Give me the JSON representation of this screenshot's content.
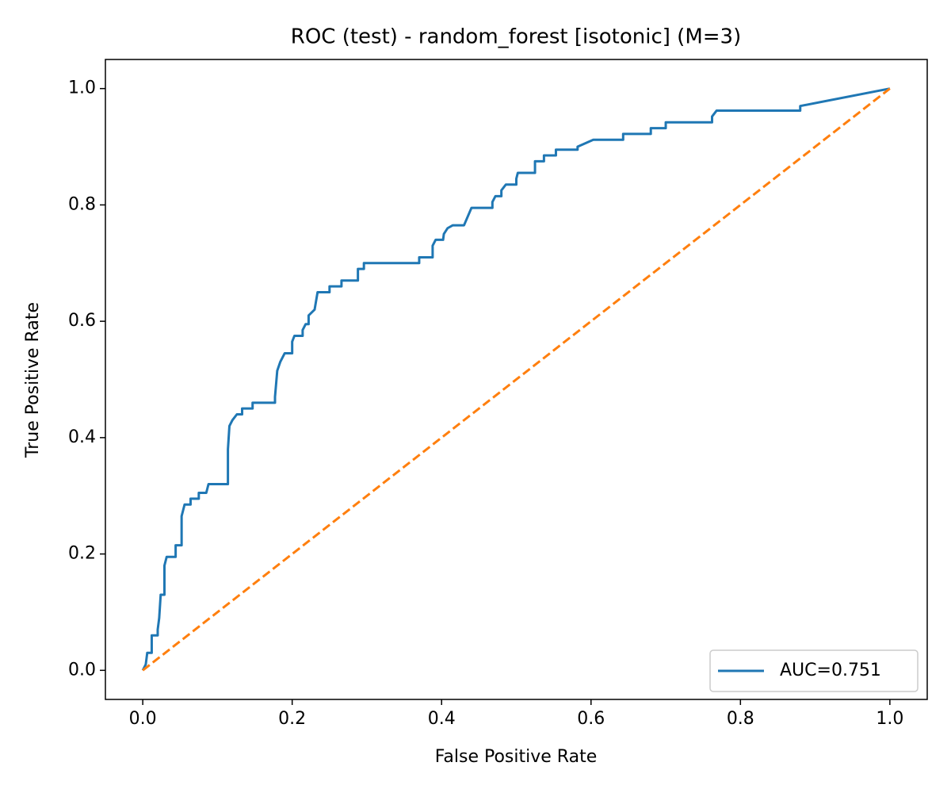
{
  "chart_data": {
    "type": "line",
    "title": "ROC (test) - random_forest [isotonic] (M=3)",
    "x_label": "False Positive Rate",
    "y_label": "True Positive Rate",
    "xlim": [
      -0.05,
      1.05
    ],
    "ylim": [
      -0.05,
      1.05
    ],
    "xticks": [
      {
        "value": 0,
        "label": "0.0"
      },
      0.2,
      0.4,
      0.6,
      0.8,
      {
        "value": 1,
        "label": "1.0"
      }
    ],
    "yticks": [
      {
        "value": 0,
        "label": "0.0"
      },
      0.2,
      0.4,
      0.6,
      0.8,
      {
        "value": 1,
        "label": "1.0"
      }
    ],
    "grid": false,
    "legend": "lower right",
    "series": [
      {
        "name": "AUC=0.751",
        "color": "#1f77b4",
        "linestyle": "solid",
        "x": [
          0,
          0.004,
          0.006,
          0.012,
          0.012,
          0.02,
          0.02,
          0.022,
          0.024,
          0.029,
          0.029,
          0.032,
          0.044,
          0.044,
          0.052,
          0.052,
          0.056,
          0.064,
          0.064,
          0.075,
          0.075,
          0.085,
          0.088,
          0.114,
          0.114,
          0.116,
          0.12,
          0.126,
          0.133,
          0.133,
          0.147,
          0.147,
          0.177,
          0.177,
          0.18,
          0.184,
          0.19,
          0.2,
          0.2,
          0.203,
          0.214,
          0.214,
          0.218,
          0.222,
          0.222,
          0.23,
          0.234,
          0.25,
          0.25,
          0.266,
          0.266,
          0.288,
          0.288,
          0.296,
          0.296,
          0.37,
          0.37,
          0.388,
          0.388,
          0.392,
          0.402,
          0.403,
          0.408,
          0.415,
          0.43,
          0.44,
          0.468,
          0.468,
          0.472,
          0.48,
          0.48,
          0.486,
          0.5,
          0.5,
          0.502,
          0.525,
          0.525,
          0.537,
          0.537,
          0.553,
          0.553,
          0.582,
          0.582,
          0.603,
          0.643,
          0.643,
          0.68,
          0.68,
          0.7,
          0.7,
          0.762,
          0.762,
          0.768,
          0.88,
          0.88,
          1
        ],
        "values": [
          0,
          0.01,
          0.03,
          0.03,
          0.06,
          0.06,
          0.07,
          0.09,
          0.13,
          0.13,
          0.18,
          0.195,
          0.195,
          0.215,
          0.215,
          0.265,
          0.285,
          0.285,
          0.295,
          0.295,
          0.305,
          0.305,
          0.32,
          0.32,
          0.38,
          0.42,
          0.43,
          0.44,
          0.44,
          0.45,
          0.45,
          0.46,
          0.46,
          0.47,
          0.515,
          0.53,
          0.545,
          0.545,
          0.565,
          0.575,
          0.575,
          0.585,
          0.595,
          0.595,
          0.61,
          0.62,
          0.65,
          0.65,
          0.66,
          0.66,
          0.67,
          0.67,
          0.69,
          0.69,
          0.7,
          0.7,
          0.71,
          0.71,
          0.73,
          0.74,
          0.74,
          0.75,
          0.76,
          0.765,
          0.765,
          0.795,
          0.795,
          0.805,
          0.815,
          0.815,
          0.825,
          0.835,
          0.835,
          0.845,
          0.855,
          0.855,
          0.875,
          0.875,
          0.885,
          0.885,
          0.895,
          0.895,
          0.9,
          0.912,
          0.912,
          0.922,
          0.922,
          0.932,
          0.932,
          0.942,
          0.942,
          0.952,
          0.962,
          0.962,
          0.97,
          1
        ]
      },
      {
        "color": "#ff7f0e",
        "linestyle": "dashed",
        "x": [
          0,
          1
        ],
        "values": [
          0,
          1
        ]
      }
    ]
  }
}
